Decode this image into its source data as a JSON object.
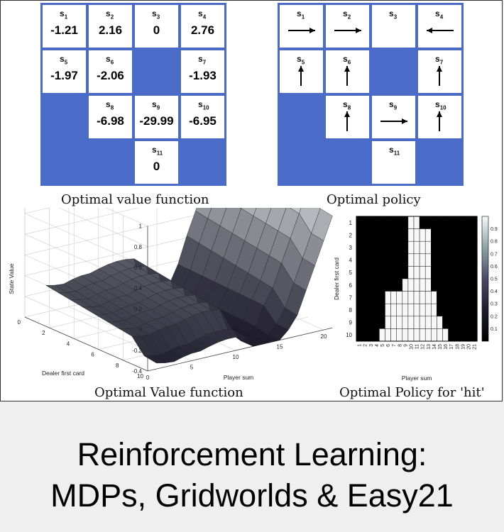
{
  "value_grid": {
    "cells": [
      {
        "state": "s",
        "sub": "1",
        "value": "-1.21",
        "wall": false
      },
      {
        "state": "s",
        "sub": "2",
        "value": "2.16",
        "wall": false
      },
      {
        "state": "s",
        "sub": "3",
        "value": "0",
        "wall": false
      },
      {
        "state": "s",
        "sub": "4",
        "value": "2.76",
        "wall": false
      },
      {
        "state": "s",
        "sub": "5",
        "value": "-1.97",
        "wall": false
      },
      {
        "state": "s",
        "sub": "6",
        "value": "-2.06",
        "wall": false
      },
      {
        "state": "",
        "sub": "",
        "value": "",
        "wall": true
      },
      {
        "state": "s",
        "sub": "7",
        "value": "-1.93",
        "wall": false
      },
      {
        "state": "",
        "sub": "",
        "value": "",
        "wall": true
      },
      {
        "state": "s",
        "sub": "8",
        "value": "-6.98",
        "wall": false
      },
      {
        "state": "s",
        "sub": "9",
        "value": "-29.99",
        "wall": false
      },
      {
        "state": "s",
        "sub": "10",
        "value": "-6.95",
        "wall": false
      },
      {
        "state": "",
        "sub": "",
        "value": "",
        "wall": true
      },
      {
        "state": "",
        "sub": "",
        "value": "",
        "wall": true
      },
      {
        "state": "s",
        "sub": "11",
        "value": "0",
        "wall": false
      },
      {
        "state": "",
        "sub": "",
        "value": "",
        "wall": true
      }
    ],
    "caption": "Optimal value function"
  },
  "policy_grid": {
    "cells": [
      {
        "state": "s",
        "sub": "1",
        "arrow": "right",
        "wall": false
      },
      {
        "state": "s",
        "sub": "2",
        "arrow": "right",
        "wall": false
      },
      {
        "state": "s",
        "sub": "3",
        "arrow": "none",
        "wall": false
      },
      {
        "state": "s",
        "sub": "4",
        "arrow": "left",
        "wall": false
      },
      {
        "state": "s",
        "sub": "5",
        "arrow": "up",
        "wall": false
      },
      {
        "state": "s",
        "sub": "6",
        "arrow": "up",
        "wall": false
      },
      {
        "state": "",
        "sub": "",
        "arrow": "none",
        "wall": true
      },
      {
        "state": "s",
        "sub": "7",
        "arrow": "up",
        "wall": false
      },
      {
        "state": "",
        "sub": "",
        "arrow": "none",
        "wall": true
      },
      {
        "state": "s",
        "sub": "8",
        "arrow": "up",
        "wall": false
      },
      {
        "state": "s",
        "sub": "9",
        "arrow": "right",
        "wall": false
      },
      {
        "state": "s",
        "sub": "10",
        "arrow": "up",
        "wall": false
      },
      {
        "state": "",
        "sub": "",
        "arrow": "none",
        "wall": true
      },
      {
        "state": "",
        "sub": "",
        "arrow": "none",
        "wall": true
      },
      {
        "state": "s",
        "sub": "11",
        "arrow": "none",
        "wall": false
      },
      {
        "state": "",
        "sub": "",
        "arrow": "none",
        "wall": true
      }
    ],
    "caption": "Optimal  policy"
  },
  "surface": {
    "caption": "Optimal Value function",
    "zlabel": "State Value",
    "xlabel": "Player sum",
    "ylabel": "Dealer first card",
    "zticks": [
      "1",
      "0.8",
      "0.6",
      "0.4",
      "0.2",
      "0",
      "-0.2",
      "-0.4"
    ],
    "xticks": [
      "0",
      "5",
      "10",
      "15",
      "20"
    ],
    "yticks": [
      "0",
      "2",
      "4",
      "6",
      "8",
      "10"
    ]
  },
  "heatmap": {
    "caption": "Optimal Policy for 'hit'",
    "xlabel": "Player sum",
    "ylabel": "Dealer first card",
    "xticks": [
      "1",
      "2",
      "3",
      "4",
      "5",
      "6",
      "7",
      "8",
      "9",
      "10",
      "11",
      "12",
      "13",
      "14",
      "15",
      "16",
      "17",
      "18",
      "19",
      "20",
      "21"
    ],
    "yticks": [
      "1",
      "2",
      "3",
      "4",
      "5",
      "6",
      "7",
      "8",
      "9",
      "10"
    ],
    "cbar_ticks": [
      "0.9",
      "0.8",
      "0.7",
      "0.6",
      "0.5",
      "0.4",
      "0.3",
      "0.2",
      "0.1"
    ]
  },
  "chart_data": [
    {
      "type": "heatmap",
      "title": "Optimal Policy for 'hit'",
      "xlabel": "Player sum",
      "ylabel": "Dealer first card",
      "x": [
        1,
        2,
        3,
        4,
        5,
        6,
        7,
        8,
        9,
        10,
        11,
        12,
        13,
        14,
        15,
        16,
        17,
        18,
        19,
        20,
        21
      ],
      "y": [
        1,
        2,
        3,
        4,
        5,
        6,
        7,
        8,
        9,
        10
      ],
      "hit_ranges": [
        [
          10,
          11
        ],
        [
          10,
          13
        ],
        [
          10,
          13
        ],
        [
          10,
          13
        ],
        [
          10,
          13
        ],
        [
          9,
          13
        ],
        [
          6,
          14
        ],
        [
          6,
          14
        ],
        [
          6,
          15
        ],
        [
          5,
          16
        ]
      ],
      "colorbar": [
        0,
        1
      ]
    },
    {
      "type": "area",
      "title": "Optimal Value function",
      "xlabel": "Player sum",
      "ylabel": "Dealer first card",
      "zlabel": "State Value",
      "xlim": [
        0,
        21
      ],
      "ylim": [
        0,
        10
      ],
      "zlim": [
        -0.4,
        1
      ]
    }
  ],
  "footer": {
    "title_line1": "Reinforcement Learning:",
    "title_line2": "MDPs, Gridworlds & Easy21"
  }
}
